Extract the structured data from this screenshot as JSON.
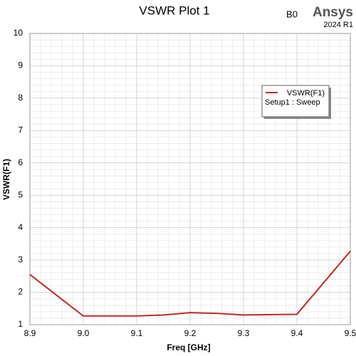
{
  "chart_data": {
    "type": "line",
    "title": "VSWR Plot 1",
    "badge": "B0",
    "brand": "Ansys",
    "version": "2024 R1",
    "x_label": "Freq [GHz]",
    "y_label": "VSWR(F1)",
    "x": [
      8.9,
      9.0,
      9.1,
      9.15,
      9.2,
      9.25,
      9.3,
      9.4,
      9.5
    ],
    "series": [
      {
        "name": "VSWR(F1)",
        "color": "#c02828",
        "values": [
          2.55,
          1.27,
          1.27,
          1.3,
          1.37,
          1.35,
          1.3,
          1.32,
          3.27
        ]
      }
    ],
    "legend_subtitle": "Setup1 : Sweep",
    "xlim": [
      8.9,
      9.5
    ],
    "xticks": [
      8.9,
      {
        "value": 9.0,
        "label": "9.0"
      },
      9.1,
      9.2,
      9.3,
      9.4,
      9.5
    ],
    "ylim": [
      1,
      10
    ],
    "yticks": [
      1,
      2,
      3,
      4,
      5,
      6,
      7,
      8,
      9,
      10
    ],
    "grid": true,
    "minor_divisions": 5,
    "legend": "upper right"
  }
}
